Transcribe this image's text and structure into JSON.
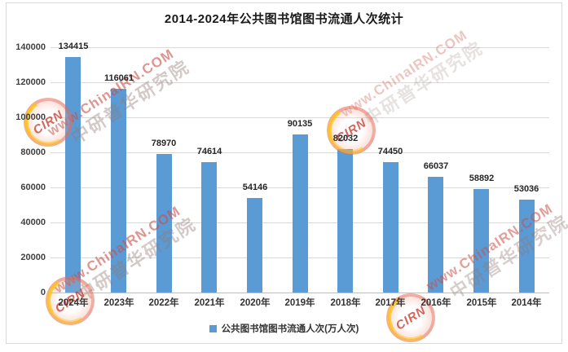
{
  "title": "2014-2024年公共图书馆图书流通人次统计",
  "legend": {
    "label": "公共图书馆图书流通人次(万人次)",
    "swatch_color": "#5B9BD5"
  },
  "colors": {
    "bar": "#5B9BD5",
    "gridline": "#D9D9D9",
    "axis_line": "#BFBFBF",
    "tick_text": "#3F3F3F",
    "data_label_text": "#262626",
    "watermark_red": "#C94E44",
    "watermark_yellow": "#FFC614"
  },
  "watermark": {
    "logo_text": "CIRN",
    "url_text": "www.ChinaIRN.COM",
    "org_text": "中研普华研究院"
  },
  "chart_data": {
    "type": "bar",
    "title": "2014-2024年公共图书馆图书流通人次统计",
    "categories": [
      "2024年",
      "2023年",
      "2022年",
      "2021年",
      "2020年",
      "2019年",
      "2018年",
      "2017年",
      "2016年",
      "2015年",
      "2014年"
    ],
    "values": [
      134415,
      116061,
      78970,
      74614,
      54146,
      90135,
      82032,
      74450,
      66037,
      58892,
      53036
    ],
    "series": [
      {
        "name": "公共图书馆图书流通人次(万人次)",
        "values": [
          134415,
          116061,
          78970,
          74614,
          54146,
          90135,
          82032,
          74450,
          66037,
          58892,
          53036
        ]
      }
    ],
    "xlabel": "",
    "ylabel": "",
    "ylim": [
      0,
      140000
    ],
    "ytick_interval": 20000,
    "yticks": [
      "0",
      "20000",
      "40000",
      "60000",
      "80000",
      "100000",
      "120000",
      "140000"
    ],
    "data_labels_shown": true,
    "grid": true,
    "legend_position": "bottom",
    "bar_color": "#5B9BD5"
  }
}
